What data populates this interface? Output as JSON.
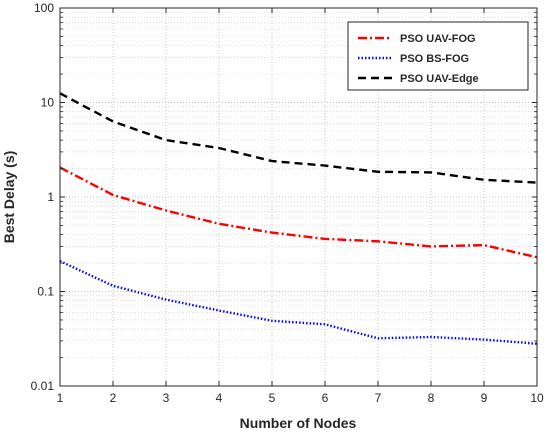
{
  "chart_data": {
    "type": "line",
    "xlabel": "Number of Nodes",
    "ylabel": "Best Delay (s)",
    "x": [
      1,
      2,
      3,
      4,
      5,
      6,
      7,
      8,
      9,
      10
    ],
    "xlim": [
      1,
      10
    ],
    "ylim": [
      0.01,
      100
    ],
    "yscale": "log",
    "xticks": [
      "1",
      "2",
      "3",
      "4",
      "5",
      "6",
      "7",
      "8",
      "9",
      "10"
    ],
    "yticks": [
      {
        "value": 0.01,
        "label": "0.01"
      },
      {
        "value": 0.1,
        "label": "0.1"
      },
      {
        "value": 1,
        "label": "1"
      },
      {
        "value": 10,
        "label": "10"
      },
      {
        "value": 100,
        "label": "100"
      }
    ],
    "grid": true,
    "legend_position": "top-right",
    "series": [
      {
        "name": "PSO UAV-FOG",
        "color": "#ff0000",
        "dash": "dash-dot",
        "values": [
          2.05,
          1.05,
          0.72,
          0.52,
          0.42,
          0.36,
          0.34,
          0.3,
          0.31,
          0.23
        ]
      },
      {
        "name": "PSO BS-FOG",
        "color": "#0000ff",
        "dash": "dotted",
        "values": [
          0.21,
          0.115,
          0.082,
          0.063,
          0.049,
          0.045,
          0.032,
          0.033,
          0.031,
          0.028
        ]
      },
      {
        "name": "PSO UAV-Edge",
        "color": "#000000",
        "dash": "dashed",
        "values": [
          12.5,
          6.3,
          4.0,
          3.3,
          2.4,
          2.15,
          1.85,
          1.82,
          1.52,
          1.42
        ]
      }
    ]
  }
}
